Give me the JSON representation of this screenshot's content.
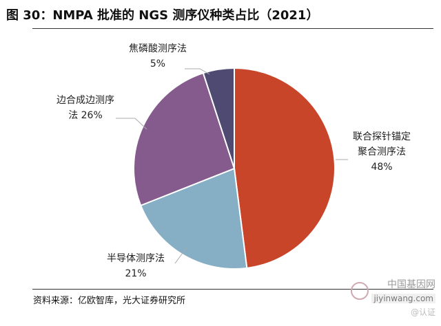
{
  "header": {
    "title": "图 30：NMPA 批准的 NGS 测序仪种类占比（2021）"
  },
  "footer": {
    "source": "资料来源：亿欧智库，光大证券研究所"
  },
  "watermark": {
    "site_name": "中国基因网",
    "site_url": "jiyinwang.com",
    "signature": "@认证"
  },
  "colors": {
    "slice_1": "#C8452A",
    "slice_2": "#86AEC4",
    "slice_3": "#855B8E",
    "slice_4": "#4F4A72"
  },
  "chart_data": {
    "type": "pie",
    "start_angle_deg": 0,
    "direction": "clockwise",
    "slices": [
      {
        "label_lines": [
          "联合探针锚定",
          "聚合测序法"
        ],
        "value_text": "48%",
        "value": 48,
        "color": "#C8452A"
      },
      {
        "label_lines": [
          "半导体测序法"
        ],
        "value_text": "21%",
        "value": 21,
        "color": "#86AEC4"
      },
      {
        "label_lines": [
          "边合成边测序",
          "法 26%"
        ],
        "value_text": "",
        "value": 26,
        "color": "#855B8E"
      },
      {
        "label_lines": [
          "焦磷酸测序法"
        ],
        "value_text": "5%",
        "value": 5,
        "color": "#4F4A72"
      }
    ]
  }
}
